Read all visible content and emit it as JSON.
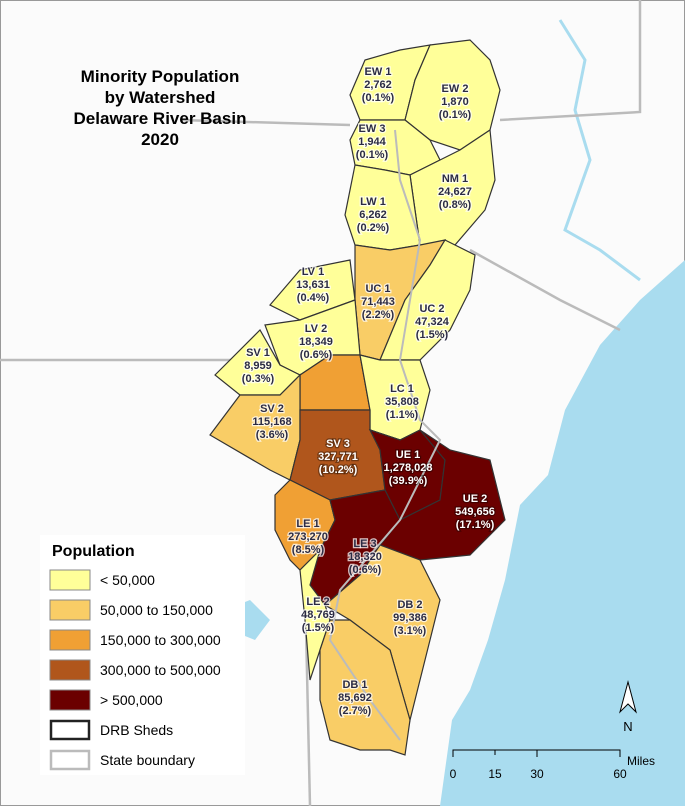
{
  "title": {
    "lines": [
      "Minority Population",
      "by Watershed",
      "Delaware River Basin",
      "2020"
    ]
  },
  "watersheds": [
    {
      "name": "EW 1",
      "population": "2,762",
      "share": "(0.1%)"
    },
    {
      "name": "EW 2",
      "population": "1,870",
      "share": "(0.1%)"
    },
    {
      "name": "EW 3",
      "population": "1,944",
      "share": "(0.1%)"
    },
    {
      "name": "NM 1",
      "population": "24,627",
      "share": "(0.8%)"
    },
    {
      "name": "LW 1",
      "population": "6,262",
      "share": "(0.2%)"
    },
    {
      "name": "LV 1",
      "population": "13,631",
      "share": "(0.4%)"
    },
    {
      "name": "UC 1",
      "population": "71,443",
      "share": "(2.2%)"
    },
    {
      "name": "UC 2",
      "population": "47,324",
      "share": "(1.5%)"
    },
    {
      "name": "LV 2",
      "population": "18,349",
      "share": "(0.6%)"
    },
    {
      "name": "SV 1",
      "population": "8,959",
      "share": "(0.3%)"
    },
    {
      "name": "LC 1",
      "population": "35,808",
      "share": "(1.1%)"
    },
    {
      "name": "SV 2",
      "population": "115,168",
      "share": "(3.6%)"
    },
    {
      "name": "SV 3",
      "population": "327,771",
      "share": "(10.2%)"
    },
    {
      "name": "UE 1",
      "population": "1,278,028",
      "share": "(39.9%)"
    },
    {
      "name": "UE 2",
      "population": "549,656",
      "share": "(17.1%)"
    },
    {
      "name": "LE 1",
      "population": "273,270",
      "share": "(8.5%)"
    },
    {
      "name": "LE 3",
      "population": "18,320",
      "share": "(0.6%)"
    },
    {
      "name": "LE 2",
      "population": "48,769",
      "share": "(1.5%)"
    },
    {
      "name": "DB 2",
      "population": "99,386",
      "share": "(3.1%)"
    },
    {
      "name": "DB 1",
      "population": "85,692",
      "share": "(2.7%)"
    }
  ],
  "legend": {
    "title": "Population",
    "items": [
      "< 50,000",
      "50,000 to 150,000",
      "150,000 to 300,000",
      "300,000 to 500,000",
      "> 500,000",
      "DRB Sheds",
      "State boundary"
    ]
  },
  "scale_bar": {
    "ticks": [
      "0",
      "15",
      "30",
      "60"
    ],
    "unit": "Miles"
  },
  "north_arrow": "N"
}
